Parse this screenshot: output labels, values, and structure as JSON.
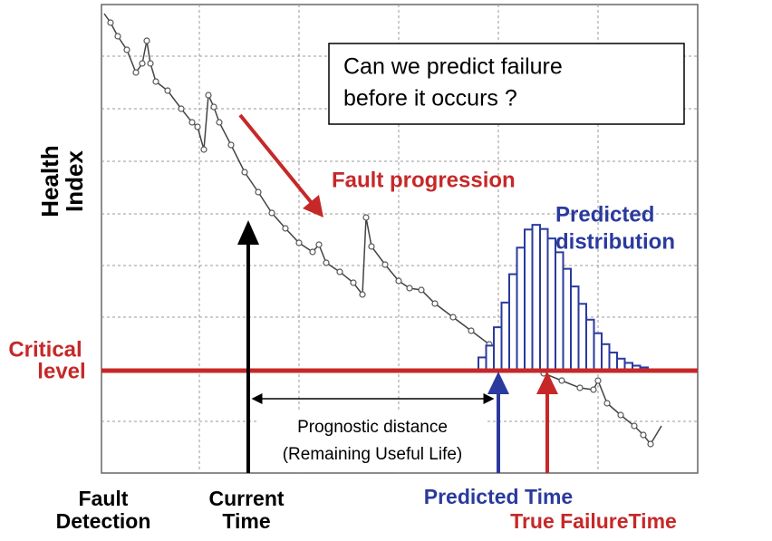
{
  "y_axis_label": [
    "Health",
    "Index"
  ],
  "critical_level": [
    "Critical",
    "level"
  ],
  "question": [
    "Can we predict failure",
    "before it occurs ?"
  ],
  "fault_progression": "Fault progression",
  "predicted_distribution": [
    "Predicted",
    "distribution"
  ],
  "prognostic_distance": [
    "Prognostic distance",
    "(Remaining Useful Life)"
  ],
  "bottom_labels": {
    "fault_detection": [
      "Fault",
      "Detection"
    ],
    "current_time": [
      "Current",
      "Time"
    ],
    "predicted_time": "Predicted Time",
    "true_failure_time": "True FailureTime"
  }
}
